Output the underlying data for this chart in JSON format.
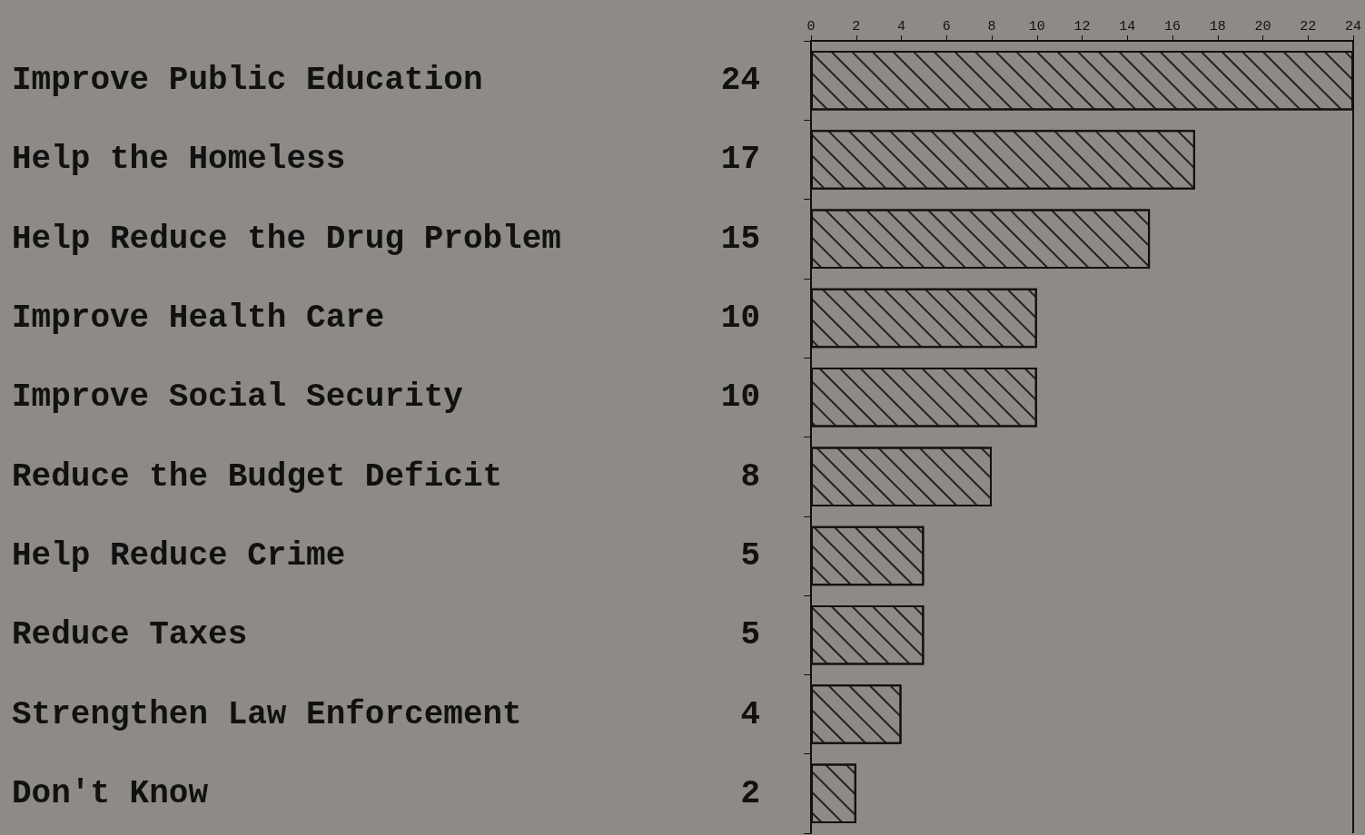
{
  "chart_data": {
    "type": "bar",
    "orientation": "horizontal",
    "categories": [
      "Improve Public Education",
      "Help the Homeless",
      "Help Reduce the Drug Problem",
      "Improve Health Care",
      "Improve Social Security",
      "Reduce the Budget Deficit",
      "Help Reduce Crime",
      "Reduce Taxes",
      "Strengthen Law Enforcement",
      "Don't Know"
    ],
    "values": [
      24,
      17,
      15,
      10,
      10,
      8,
      5,
      5,
      4,
      2
    ],
    "color": "#8e8a85",
    "x2lim": [
      0,
      24
    ],
    "x2ticks": [
      0,
      2,
      4,
      6,
      8,
      10,
      12,
      14,
      16,
      18,
      20,
      22,
      24
    ],
    "data_labels": true,
    "grid": false
  }
}
